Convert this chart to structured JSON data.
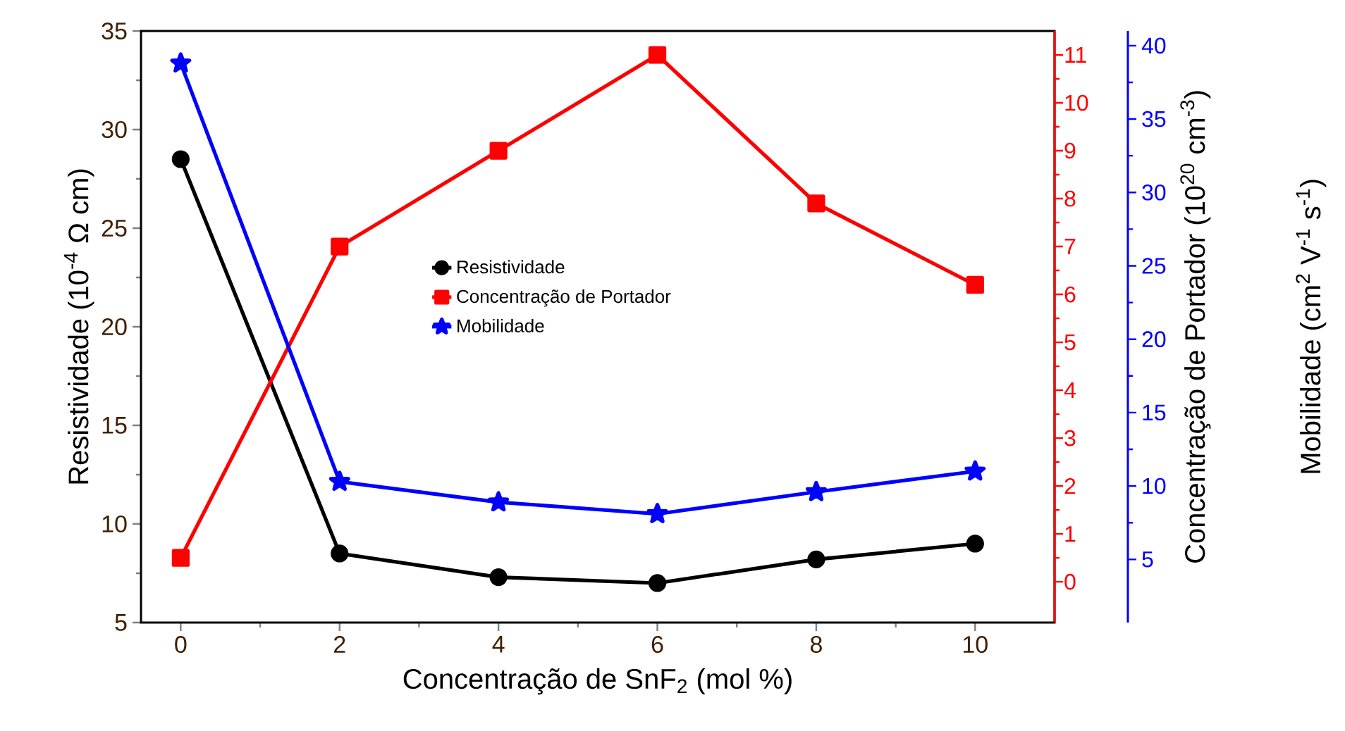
{
  "chart_data": {
    "type": "line",
    "xlabel": "Concentração de SnF$_{2}$ (mol %)",
    "ylabel": "Resistividade (10$^{-4}$ Ω cm)",
    "y2label": "Concentração de Portador (10$^{20}$ cm$^{-3}$)",
    "y3label": "Mobilidade (cm$^{2}$ V$^{-1}$ s$^{-1}$)",
    "x": [
      0,
      2,
      4,
      6,
      8,
      10
    ],
    "xlim": [
      -0.5,
      11
    ],
    "xticks": [
      0,
      2,
      4,
      6,
      8,
      10
    ],
    "ylim": [
      5,
      35
    ],
    "yticks": [
      5,
      10,
      15,
      20,
      25,
      30,
      35
    ],
    "y2lim": [
      -0.85,
      11.5
    ],
    "y2ticks": [
      0,
      1,
      2,
      3,
      4,
      5,
      6,
      7,
      8,
      9,
      10,
      11
    ],
    "y3lim": [
      0.7,
      41
    ],
    "y3ticks": [
      5,
      10,
      15,
      20,
      25,
      30,
      35,
      40
    ],
    "grid": false,
    "legend": "center",
    "series": [
      {
        "name": "Resistividade",
        "color": "#000000",
        "axis": "y",
        "marker": "circle",
        "values": [
          28.5,
          8.5,
          7.3,
          7.0,
          8.2,
          9.0
        ]
      },
      {
        "name": "Concentração de Portador",
        "color": "#ff0000",
        "axis": "y2",
        "marker": "square",
        "values": [
          0.5,
          7.0,
          9.0,
          11.0,
          7.9,
          6.2
        ]
      },
      {
        "name": "Mobilidade",
        "color": "#0000ff",
        "axis": "y3",
        "marker": "star",
        "values": [
          38.8,
          10.3,
          8.9,
          8.1,
          9.6,
          11.0
        ]
      }
    ]
  }
}
